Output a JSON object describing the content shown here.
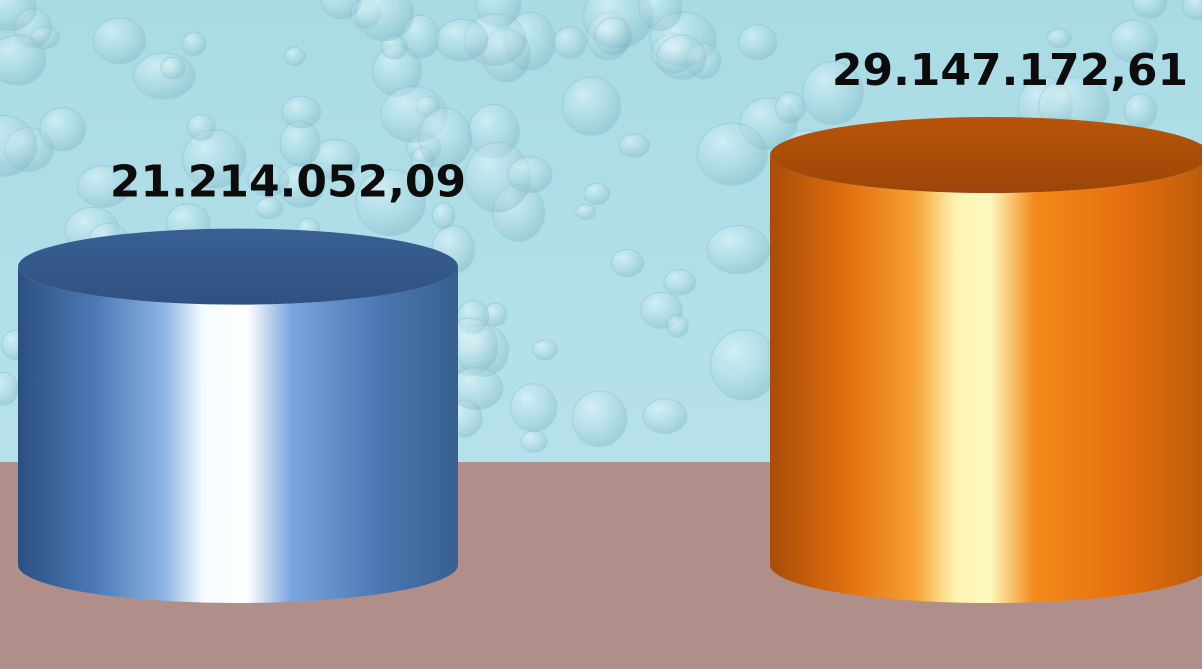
{
  "chart_data": {
    "type": "bar",
    "style": "3d-cylinder",
    "categories": [
      "",
      ""
    ],
    "series": [
      {
        "values": [
          21214052.09,
          29147172.61
        ]
      }
    ],
    "data_labels": [
      "21.214.052,09",
      "29.147.172,61"
    ],
    "bar_colors": [
      "#4a76b4",
      "#e5700f"
    ],
    "wall_background": "water-droplet texture",
    "floor_color": "#b08f8b",
    "title": "",
    "xlabel": "",
    "ylabel": "",
    "legend": "none"
  }
}
